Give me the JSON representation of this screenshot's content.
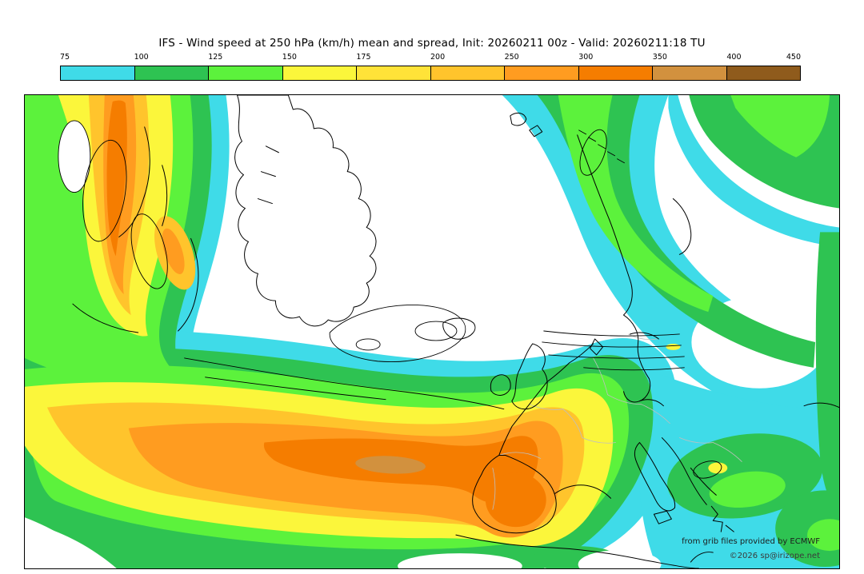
{
  "title": "IFS - Wind speed at 250 hPa (km/h) mean and spread, Init: 20260211 00z - Valid: 20260211:18 TU",
  "map_info": {
    "model": "IFS",
    "parameter": "Wind speed at 250 hPa (km/h) mean and spread",
    "init": "20260211 00z",
    "valid": "20260211:18 TU"
  },
  "colorbar": {
    "ticks": [
      "75",
      "100",
      "125",
      "150",
      "175",
      "200",
      "250",
      "300",
      "350",
      "400",
      "450"
    ],
    "colors": [
      "#3FDBE8",
      "#2EC352",
      "#5CF23C",
      "#FBF63B",
      "#FFE338",
      "#FFC42C",
      "#FF9C20",
      "#F57D00",
      "#D2913E",
      "#8F5B1C"
    ]
  },
  "credits": {
    "line1": "from grib files provided by ECMWF",
    "line2": "©2026 sp@irizope.net"
  }
}
